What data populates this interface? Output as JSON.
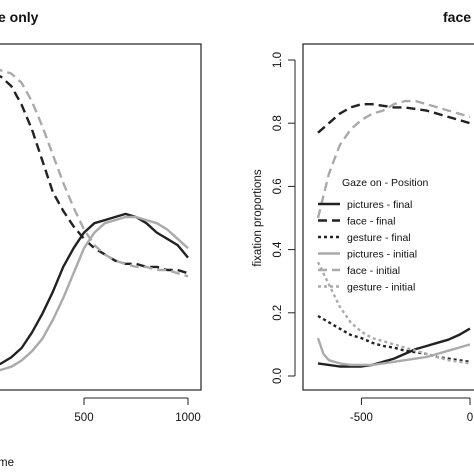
{
  "chart_data": [
    {
      "type": "line",
      "title": "e only",
      "xlabel": "me",
      "ylabel": "",
      "xlim": [
        0,
        1000
      ],
      "ylim": [
        0,
        1
      ],
      "xticks": [
        "500",
        "1000"
      ],
      "grid": false,
      "series": [
        {
          "style": "solid-black",
          "color": "#222222",
          "x": [
            0,
            50,
            100,
            150,
            200,
            250,
            300,
            350,
            400,
            450,
            500,
            550,
            600,
            650,
            700,
            750,
            800,
            850,
            900,
            950,
            1000
          ],
          "y": [
            0.01,
            0.02,
            0.03,
            0.05,
            0.08,
            0.13,
            0.19,
            0.26,
            0.34,
            0.4,
            0.45,
            0.48,
            0.49,
            0.5,
            0.51,
            0.5,
            0.48,
            0.45,
            0.43,
            0.41,
            0.37
          ]
        },
        {
          "style": "dashed-black",
          "color": "#222222",
          "x": [
            0,
            50,
            100,
            150,
            200,
            250,
            300,
            350,
            400,
            450,
            500,
            550,
            600,
            650,
            700,
            750,
            800,
            850,
            900,
            950,
            1000
          ],
          "y": [
            0.96,
            0.96,
            0.95,
            0.92,
            0.86,
            0.78,
            0.68,
            0.58,
            0.52,
            0.47,
            0.43,
            0.4,
            0.38,
            0.36,
            0.35,
            0.35,
            0.34,
            0.34,
            0.33,
            0.33,
            0.32
          ]
        },
        {
          "style": "solid-gray",
          "color": "#aaaaaa",
          "x": [
            0,
            50,
            100,
            150,
            200,
            250,
            300,
            350,
            400,
            450,
            500,
            550,
            600,
            650,
            700,
            750,
            800,
            850,
            900,
            950,
            1000
          ],
          "y": [
            0.0,
            0.0,
            0.01,
            0.02,
            0.04,
            0.07,
            0.11,
            0.17,
            0.24,
            0.32,
            0.4,
            0.45,
            0.48,
            0.49,
            0.5,
            0.5,
            0.49,
            0.48,
            0.46,
            0.43,
            0.4
          ]
        },
        {
          "style": "dashed-gray",
          "color": "#aaaaaa",
          "x": [
            0,
            50,
            100,
            150,
            200,
            250,
            300,
            350,
            400,
            450,
            500,
            550,
            600,
            650,
            700,
            750,
            800,
            850,
            900,
            950,
            1000
          ],
          "y": [
            0.98,
            0.98,
            0.97,
            0.96,
            0.93,
            0.87,
            0.79,
            0.7,
            0.61,
            0.53,
            0.46,
            0.41,
            0.38,
            0.36,
            0.35,
            0.34,
            0.34,
            0.33,
            0.33,
            0.32,
            0.31
          ]
        }
      ]
    },
    {
      "type": "line",
      "title": "face",
      "xlabel": "",
      "ylabel": "fixation proportions",
      "xlim": [
        -700,
        0
      ],
      "ylim": [
        0,
        1
      ],
      "xticks": [
        "-500",
        "0"
      ],
      "yticks": [
        "0.0",
        "0.2",
        "0.4",
        "0.6",
        "0.8",
        "1.0"
      ],
      "grid": false,
      "legend_position": "center-left",
      "legend_title": "Gaze on - Position",
      "series": [
        {
          "name": "pictures - final",
          "style": "solid-black",
          "color": "#222222",
          "x": [
            -700,
            -650,
            -600,
            -550,
            -500,
            -450,
            -400,
            -350,
            -300,
            -250,
            -200,
            -150,
            -100,
            -50,
            0
          ],
          "y": [
            0.04,
            0.035,
            0.03,
            0.03,
            0.03,
            0.035,
            0.045,
            0.055,
            0.07,
            0.085,
            0.095,
            0.105,
            0.115,
            0.13,
            0.15
          ]
        },
        {
          "name": "face - final",
          "style": "dashed-black",
          "color": "#222222",
          "x": [
            -700,
            -650,
            -600,
            -550,
            -500,
            -450,
            -400,
            -350,
            -300,
            -250,
            -200,
            -150,
            -100,
            -50,
            0
          ],
          "y": [
            0.77,
            0.8,
            0.83,
            0.85,
            0.86,
            0.86,
            0.855,
            0.85,
            0.85,
            0.845,
            0.84,
            0.83,
            0.82,
            0.81,
            0.8
          ]
        },
        {
          "name": "gesture - final",
          "style": "dotted-black",
          "color": "#222222",
          "x": [
            -700,
            -650,
            -600,
            -550,
            -500,
            -450,
            -400,
            -350,
            -300,
            -250,
            -200,
            -150,
            -100,
            -50,
            0
          ],
          "y": [
            0.19,
            0.17,
            0.15,
            0.13,
            0.12,
            0.105,
            0.095,
            0.09,
            0.08,
            0.075,
            0.07,
            0.06,
            0.055,
            0.05,
            0.045
          ]
        },
        {
          "name": "pictures - initial",
          "style": "solid-gray",
          "color": "#aaaaaa",
          "x": [
            -700,
            -675,
            -650,
            -600,
            -550,
            -500,
            -450,
            -400,
            -350,
            -300,
            -250,
            -200,
            -150,
            -100,
            -50,
            0
          ],
          "y": [
            0.12,
            0.07,
            0.05,
            0.04,
            0.035,
            0.035,
            0.035,
            0.04,
            0.045,
            0.05,
            0.055,
            0.06,
            0.07,
            0.08,
            0.09,
            0.1
          ]
        },
        {
          "name": "face - initial",
          "style": "dashed-gray",
          "color": "#aaaaaa",
          "x": [
            -700,
            -650,
            -600,
            -550,
            -500,
            -450,
            -400,
            -350,
            -300,
            -250,
            -200,
            -150,
            -100,
            -50,
            0
          ],
          "y": [
            0.5,
            0.64,
            0.73,
            0.78,
            0.81,
            0.83,
            0.84,
            0.86,
            0.87,
            0.87,
            0.86,
            0.85,
            0.84,
            0.83,
            0.82
          ]
        },
        {
          "name": "gesture - initial",
          "style": "dotted-gray",
          "color": "#aaaaaa",
          "x": [
            -700,
            -650,
            -600,
            -550,
            -500,
            -450,
            -400,
            -350,
            -300,
            -250,
            -200,
            -150,
            -100,
            -50,
            0
          ],
          "y": [
            0.36,
            0.29,
            0.22,
            0.17,
            0.14,
            0.12,
            0.11,
            0.1,
            0.09,
            0.08,
            0.07,
            0.06,
            0.05,
            0.045,
            0.04
          ]
        }
      ]
    }
  ]
}
